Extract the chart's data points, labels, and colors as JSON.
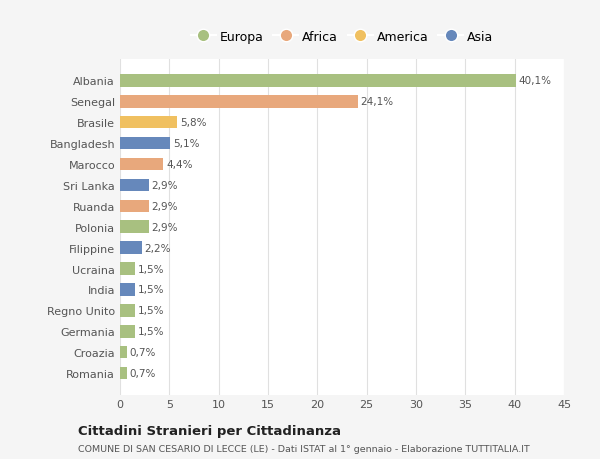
{
  "countries": [
    "Albania",
    "Senegal",
    "Brasile",
    "Bangladesh",
    "Marocco",
    "Sri Lanka",
    "Ruanda",
    "Polonia",
    "Filippine",
    "Ucraina",
    "India",
    "Regno Unito",
    "Germania",
    "Croazia",
    "Romania"
  ],
  "values": [
    40.1,
    24.1,
    5.8,
    5.1,
    4.4,
    2.9,
    2.9,
    2.9,
    2.2,
    1.5,
    1.5,
    1.5,
    1.5,
    0.7,
    0.7
  ],
  "labels": [
    "40,1%",
    "24,1%",
    "5,8%",
    "5,1%",
    "4,4%",
    "2,9%",
    "2,9%",
    "2,9%",
    "2,2%",
    "1,5%",
    "1,5%",
    "1,5%",
    "1,5%",
    "0,7%",
    "0,7%"
  ],
  "colors": [
    "#a8c080",
    "#e8a87c",
    "#f0c060",
    "#6688bb",
    "#e8a87c",
    "#6688bb",
    "#e8a87c",
    "#a8c080",
    "#6688bb",
    "#a8c080",
    "#6688bb",
    "#a8c080",
    "#a8c080",
    "#a8c080",
    "#a8c080"
  ],
  "legend_labels": [
    "Europa",
    "Africa",
    "America",
    "Asia"
  ],
  "legend_colors": [
    "#a8c080",
    "#e8a87c",
    "#f0c060",
    "#6688bb"
  ],
  "title": "Cittadini Stranieri per Cittadinanza",
  "subtitle": "COMUNE DI SAN CESARIO DI LECCE (LE) - Dati ISTAT al 1° gennaio - Elaborazione TUTTITALIA.IT",
  "xlim": [
    0,
    45
  ],
  "xticks": [
    0,
    5,
    10,
    15,
    20,
    25,
    30,
    35,
    40,
    45
  ],
  "background_color": "#f5f5f5",
  "bar_background": "#ffffff",
  "grid_color": "#e0e0e0"
}
